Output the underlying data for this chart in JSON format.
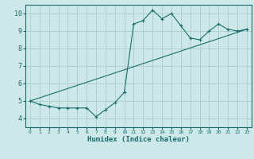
{
  "xlabel": "Humidex (Indice chaleur)",
  "background_color": "#cce8e8",
  "grid_color": "#b0d0d0",
  "line_color": "#1a6b6b",
  "xlim": [
    -0.5,
    23.5
  ],
  "ylim": [
    3.5,
    10.5
  ],
  "xticks": [
    0,
    1,
    2,
    3,
    4,
    5,
    6,
    7,
    8,
    9,
    10,
    11,
    12,
    13,
    14,
    15,
    16,
    17,
    18,
    19,
    20,
    21,
    22,
    23
  ],
  "yticks": [
    4,
    5,
    6,
    7,
    8,
    9,
    10
  ],
  "series1_x": [
    0,
    1,
    2,
    3,
    4,
    5,
    6,
    7,
    8,
    9,
    10,
    11,
    12,
    13,
    14,
    15,
    16,
    17,
    18,
    19,
    20,
    21,
    22,
    23
  ],
  "series1_y": [
    5.0,
    4.8,
    4.7,
    4.6,
    4.6,
    4.6,
    4.6,
    4.1,
    4.5,
    4.9,
    5.5,
    9.4,
    9.6,
    10.2,
    9.7,
    10.0,
    9.3,
    8.6,
    8.5,
    9.0,
    9.4,
    9.1,
    9.0,
    9.1
  ],
  "series2_x": [
    0,
    23
  ],
  "series2_y": [
    5.0,
    9.1
  ]
}
